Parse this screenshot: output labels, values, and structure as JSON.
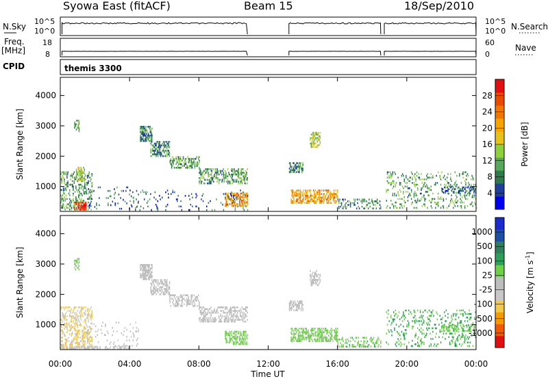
{
  "header": {
    "station": "Syowa East (fitACF)",
    "beam": "Beam 15",
    "date": "18/Sep/2010"
  },
  "strip_panels": {
    "nsky_label": "N.Sky",
    "nsky_ticks": [
      "10^5",
      "10^0"
    ],
    "nsearch_label": "N.Search",
    "nsearch_ticks": [
      "10^5",
      "10^0"
    ],
    "freq_label_1": "Freq.",
    "freq_label_2": "[MHz]",
    "freq_ticks": [
      "18",
      "8"
    ],
    "nave_label": "Nave",
    "nave_ticks": [
      "60",
      "0"
    ],
    "cpid_label": "CPID",
    "cpid_value": "themis 3300"
  },
  "colors": {
    "power_scale": [
      "#0000ee",
      "#1f3f9a",
      "#2f7a4a",
      "#57a85a",
      "#8fd03f",
      "#e6c21a",
      "#f5a400",
      "#f07800",
      "#e84a00",
      "#e01010"
    ],
    "velocity_scale": [
      "#e01010",
      "#f05a00",
      "#f59a00",
      "#f2c94a",
      "#c8c8c8",
      "#bdbdbd",
      "#6fd04a",
      "#2f9e5a",
      "#2f7f5a",
      "#1f4fa0",
      "#1a2acc"
    ]
  },
  "chart_data": [
    {
      "type": "heatmap",
      "panel": "power",
      "ylabel": "Slant Range [km]",
      "ylim": [
        180,
        4600
      ],
      "yticks": [
        "1000",
        "2000",
        "3000",
        "4000"
      ],
      "xticks": [
        "00:00",
        "04:00",
        "08:00",
        "12:00",
        "16:00",
        "20:00",
        "00:00"
      ],
      "colorbar_label": "Power [dB]",
      "colorbar_ticks": [
        "4",
        "8",
        "12",
        "16",
        "20",
        "24",
        "28"
      ],
      "clim": [
        0,
        30
      ],
      "series": [
        {
          "start": 0.0,
          "end": 1.8,
          "r0": 220,
          "r1": 1500,
          "value": 10,
          "density": 0.35
        },
        {
          "start": 0.8,
          "end": 1.5,
          "r0": 220,
          "r1": 500,
          "value": 27,
          "density": 0.7
        },
        {
          "start": 0.9,
          "end": 1.4,
          "r0": 1200,
          "r1": 1650,
          "value": 14,
          "density": 0.6
        },
        {
          "start": 0.8,
          "end": 1.1,
          "r0": 2800,
          "r1": 3200,
          "value": 12,
          "density": 0.5
        },
        {
          "start": 1.5,
          "end": 4.5,
          "r0": 250,
          "r1": 1000,
          "value": 6,
          "density": 0.08
        },
        {
          "start": 4.6,
          "end": 5.3,
          "r0": 2500,
          "r1": 3000,
          "value": 8,
          "density": 0.7
        },
        {
          "start": 5.2,
          "end": 6.3,
          "r0": 2000,
          "r1": 2500,
          "value": 8,
          "density": 0.55
        },
        {
          "start": 6.3,
          "end": 8.0,
          "r0": 1600,
          "r1": 2000,
          "value": 10,
          "density": 0.45
        },
        {
          "start": 8.0,
          "end": 10.8,
          "r0": 1100,
          "r1": 1600,
          "value": 10,
          "density": 0.45
        },
        {
          "start": 9.5,
          "end": 10.8,
          "r0": 350,
          "r1": 800,
          "value": 20,
          "density": 0.55
        },
        {
          "start": 4.0,
          "end": 10.8,
          "r0": 250,
          "r1": 900,
          "value": 6,
          "density": 0.08
        },
        {
          "start": 13.2,
          "end": 14.0,
          "r0": 1450,
          "r1": 1800,
          "value": 8,
          "density": 0.6
        },
        {
          "start": 13.3,
          "end": 16.0,
          "r0": 450,
          "r1": 900,
          "value": 20,
          "density": 0.55
        },
        {
          "start": 14.4,
          "end": 15.0,
          "r0": 2300,
          "r1": 2800,
          "value": 14,
          "density": 0.5
        },
        {
          "start": 16.0,
          "end": 18.5,
          "r0": 300,
          "r1": 600,
          "value": 8,
          "density": 0.3
        },
        {
          "start": 18.8,
          "end": 24.0,
          "r0": 300,
          "r1": 1500,
          "value": 10,
          "density": 0.18
        },
        {
          "start": 22.0,
          "end": 24.0,
          "r0": 800,
          "r1": 1000,
          "value": 6,
          "density": 0.4
        }
      ]
    },
    {
      "type": "heatmap",
      "panel": "velocity",
      "ylabel": "Slant Range [km]",
      "ylim": [
        180,
        4600
      ],
      "yticks": [
        "1000",
        "2000",
        "3000",
        "4000"
      ],
      "xticks": [
        "00:00",
        "04:00",
        "08:00",
        "12:00",
        "16:00",
        "20:00",
        "00:00"
      ],
      "xlabel": "Time UT",
      "colorbar_label": "Velocity [m s^-1]",
      "colorbar_ticks": [
        "1000",
        "500",
        "100",
        "25",
        "-25",
        "-100",
        "-500",
        "-1000"
      ],
      "clim": [
        -1000,
        1000
      ],
      "series": [
        {
          "start": 0.0,
          "end": 1.8,
          "r0": 220,
          "r1": 1600,
          "value": -300,
          "density": 0.4
        },
        {
          "start": 0.0,
          "end": 4.0,
          "r0": 200,
          "r1": 300,
          "value": -100,
          "density": 0.45
        },
        {
          "start": 0.8,
          "end": 1.1,
          "r0": 2800,
          "r1": 3200,
          "value": 100,
          "density": 0.5
        },
        {
          "start": 1.5,
          "end": 4.5,
          "r0": 250,
          "r1": 1100,
          "value": -80,
          "density": 0.08
        },
        {
          "start": 4.6,
          "end": 5.3,
          "r0": 2500,
          "r1": 3000,
          "value": 0,
          "density": 0.7
        },
        {
          "start": 5.2,
          "end": 6.3,
          "r0": 2000,
          "r1": 2500,
          "value": 0,
          "density": 0.55
        },
        {
          "start": 6.3,
          "end": 8.0,
          "r0": 1600,
          "r1": 2000,
          "value": 10,
          "density": 0.45
        },
        {
          "start": 8.0,
          "end": 10.8,
          "r0": 1100,
          "r1": 1600,
          "value": 0,
          "density": 0.45
        },
        {
          "start": 9.5,
          "end": 10.8,
          "r0": 350,
          "r1": 800,
          "value": 150,
          "density": 0.55
        },
        {
          "start": 13.2,
          "end": 14.0,
          "r0": 1450,
          "r1": 1800,
          "value": 0,
          "density": 0.6
        },
        {
          "start": 13.3,
          "end": 16.0,
          "r0": 450,
          "r1": 900,
          "value": 150,
          "density": 0.55
        },
        {
          "start": 14.4,
          "end": 15.0,
          "r0": 2300,
          "r1": 2800,
          "value": 0,
          "density": 0.5
        },
        {
          "start": 16.0,
          "end": 18.5,
          "r0": 300,
          "r1": 600,
          "value": 200,
          "density": 0.35
        },
        {
          "start": 18.8,
          "end": 24.0,
          "r0": 300,
          "r1": 1500,
          "value": 300,
          "density": 0.18
        },
        {
          "start": 22.0,
          "end": 24.0,
          "r0": 800,
          "r1": 1000,
          "value": 200,
          "density": 0.4
        }
      ]
    }
  ]
}
